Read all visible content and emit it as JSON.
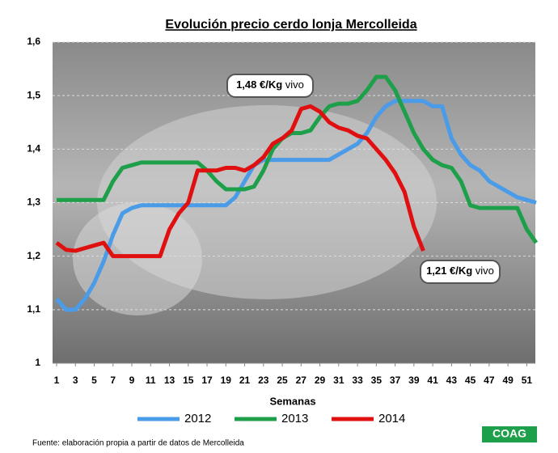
{
  "chart_data": {
    "type": "line",
    "title": "Evolución precio cerdo lonja Mercolleida",
    "x_label": "Semanas",
    "source": "Fuente: elaboración propia a partir de datos de Mercolleida",
    "logo": "COAG",
    "x": [
      1,
      2,
      3,
      4,
      5,
      6,
      7,
      8,
      9,
      10,
      11,
      12,
      13,
      14,
      15,
      16,
      17,
      18,
      19,
      20,
      21,
      22,
      23,
      24,
      25,
      26,
      27,
      28,
      29,
      30,
      31,
      32,
      33,
      34,
      35,
      36,
      37,
      38,
      39,
      40,
      41,
      42,
      43,
      44,
      45,
      46,
      47,
      48,
      49,
      50,
      51,
      52
    ],
    "xlim": [
      1,
      52
    ],
    "xticks": [
      1,
      3,
      5,
      7,
      9,
      11,
      13,
      15,
      17,
      19,
      21,
      23,
      25,
      27,
      29,
      31,
      33,
      35,
      37,
      39,
      41,
      43,
      45,
      47,
      49,
      51
    ],
    "ylim": [
      1,
      1.6
    ],
    "yticks": [
      1,
      {
        "value": 1.1,
        "label": "1,1"
      },
      {
        "value": 1.2,
        "label": "1,2"
      },
      {
        "value": 1.3,
        "label": "1,3"
      },
      {
        "value": 1.4,
        "label": "1,4"
      },
      {
        "value": 1.5,
        "label": "1,5"
      },
      {
        "value": 1.6,
        "label": "1,6"
      }
    ],
    "grid": true,
    "series": [
      {
        "name": "2012",
        "color": "#4a9be8",
        "values": [
          1.12,
          1.1,
          1.1,
          1.12,
          1.15,
          1.19,
          1.24,
          1.28,
          1.29,
          1.295,
          1.295,
          1.295,
          1.295,
          1.295,
          1.295,
          1.295,
          1.295,
          1.295,
          1.295,
          1.31,
          1.34,
          1.37,
          1.38,
          1.38,
          1.38,
          1.38,
          1.38,
          1.38,
          1.38,
          1.38,
          1.39,
          1.4,
          1.41,
          1.43,
          1.46,
          1.48,
          1.49,
          1.49,
          1.49,
          1.49,
          1.48,
          1.48,
          1.42,
          1.39,
          1.37,
          1.36,
          1.34,
          1.33,
          1.32,
          1.31,
          1.305,
          1.3
        ]
      },
      {
        "name": "2013",
        "color": "#1ea04a",
        "values": [
          1.305,
          1.305,
          1.305,
          1.305,
          1.305,
          1.305,
          1.34,
          1.365,
          1.37,
          1.375,
          1.375,
          1.375,
          1.375,
          1.375,
          1.375,
          1.375,
          1.36,
          1.34,
          1.325,
          1.325,
          1.325,
          1.33,
          1.36,
          1.4,
          1.42,
          1.43,
          1.43,
          1.435,
          1.46,
          1.48,
          1.485,
          1.485,
          1.49,
          1.51,
          1.535,
          1.535,
          1.51,
          1.47,
          1.43,
          1.4,
          1.38,
          1.37,
          1.365,
          1.34,
          1.295,
          1.29,
          1.29,
          1.29,
          1.29,
          1.29,
          1.25,
          1.225
        ]
      },
      {
        "name": "2014",
        "color": "#e01010",
        "values": [
          1.225,
          1.212,
          1.21,
          1.215,
          1.22,
          1.225,
          1.2,
          1.2,
          1.2,
          1.2,
          1.2,
          1.2,
          1.25,
          1.28,
          1.3,
          1.36,
          1.36,
          1.36,
          1.365,
          1.365,
          1.36,
          1.37,
          1.385,
          1.41,
          1.42,
          1.435,
          1.475,
          1.48,
          1.47,
          1.45,
          1.44,
          1.435,
          1.425,
          1.42,
          1.4,
          1.38,
          1.355,
          1.32,
          1.255,
          1.21,
          null,
          null,
          null,
          null,
          null,
          null,
          null,
          null,
          null,
          null,
          null,
          null
        ]
      }
    ],
    "annotations": [
      {
        "text": "1,48 €/Kg",
        "unit": "vivo"
      },
      {
        "text": "1,21 €/Kg",
        "unit": "vivo"
      }
    ]
  }
}
